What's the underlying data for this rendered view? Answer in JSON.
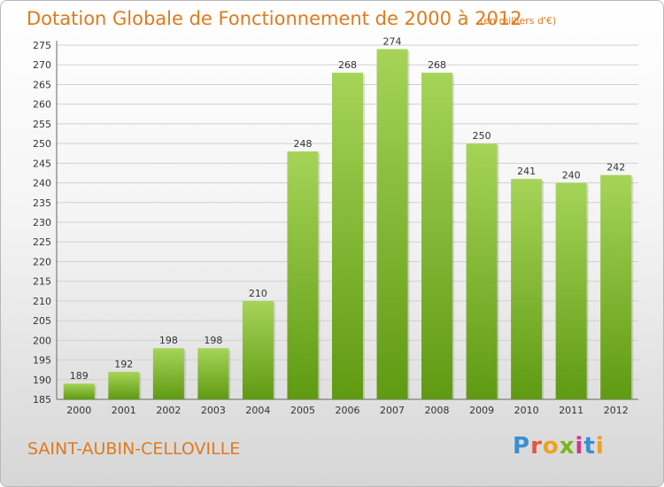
{
  "header": {
    "title": "Dotation Globale de Fonctionnement de 2000 à 2012",
    "subtitle": "(en milliers d'€)"
  },
  "footer": {
    "commune": "SAINT-AUBIN-CELLOVILLE",
    "logo": "Proxiti"
  },
  "colors": {
    "bar_light": "#a6d458",
    "bar_dark": "#5f9a12",
    "accent": "#e07a1e",
    "grid": "#d0d0d0"
  },
  "chart_data": {
    "type": "bar",
    "title": "Dotation Globale de Fonctionnement de 2000 à 2012",
    "subtitle": "(en milliers d'€)",
    "categories": [
      "2000",
      "2001",
      "2002",
      "2003",
      "2004",
      "2005",
      "2006",
      "2007",
      "2008",
      "2009",
      "2010",
      "2011",
      "2012"
    ],
    "values": [
      189,
      192,
      198,
      198,
      210,
      248,
      268,
      274,
      268,
      250,
      241,
      240,
      242
    ],
    "ylim": [
      185,
      275
    ],
    "yticks": [
      185,
      190,
      195,
      200,
      205,
      210,
      215,
      220,
      225,
      230,
      235,
      240,
      245,
      250,
      255,
      260,
      265,
      270,
      275
    ],
    "grid": true,
    "data_labels": true
  }
}
